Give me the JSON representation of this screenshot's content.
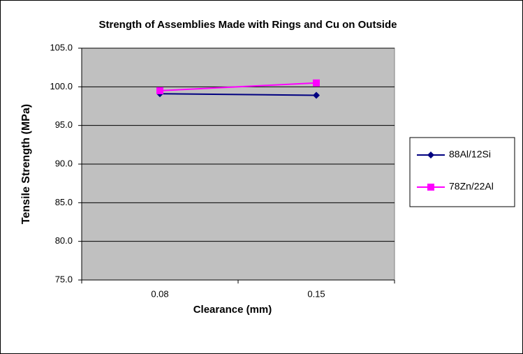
{
  "chart_data": {
    "type": "line",
    "title": "Strength of Assemblies  Made with Rings and Cu on Outside",
    "x_label": "Clearance (mm)",
    "y_label": "Tensile Strength (MPa)",
    "categories": [
      "0.08",
      "0.15"
    ],
    "series": [
      {
        "name": "88Al/12Si",
        "color": "#000080",
        "marker": "diamond",
        "values": [
          99.1,
          98.9
        ]
      },
      {
        "name": "78Zn/22Al",
        "color": "#ff00ff",
        "marker": "square",
        "values": [
          99.5,
          100.5
        ]
      }
    ],
    "ylim": [
      75,
      105
    ],
    "yticks": [
      {
        "value": 75,
        "label": "75.0"
      },
      {
        "value": 80,
        "label": "80.0"
      },
      {
        "value": 85,
        "label": "85.0"
      },
      {
        "value": 90,
        "label": "90.0"
      },
      {
        "value": 95,
        "label": "95.0"
      },
      {
        "value": 100,
        "label": "100.0"
      },
      {
        "value": 105,
        "label": "105.0"
      }
    ],
    "grid": true,
    "plot_background": "#c0c0c0",
    "legend": "right"
  }
}
